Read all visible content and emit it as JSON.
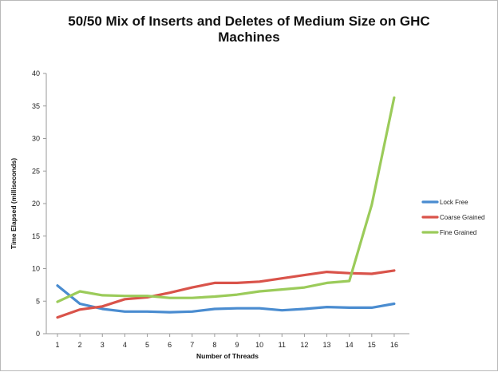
{
  "chart_data": {
    "type": "line",
    "title_lines": [
      "50/50 Mix of Inserts and Deletes of  Medium Size on GHC",
      "Machines"
    ],
    "xlabel": "Number of Threads",
    "ylabel": "Time Elapsed (milliseconds)",
    "x": [
      1,
      2,
      3,
      4,
      5,
      6,
      7,
      8,
      9,
      10,
      11,
      12,
      13,
      14,
      15,
      16
    ],
    "x_tick_labels": [
      "1",
      "2",
      "3",
      "4",
      "5",
      "6",
      "7",
      "8",
      "9",
      "10",
      "11",
      "12",
      "13",
      "14",
      "15",
      "16"
    ],
    "ylim": [
      0,
      40
    ],
    "y_ticks": [
      0,
      5,
      10,
      15,
      20,
      25,
      30,
      35,
      40
    ],
    "y_tick_labels": [
      "0",
      "5",
      "10",
      "15",
      "20",
      "25",
      "30",
      "35",
      "40"
    ],
    "grid": false,
    "legend_position": "right",
    "series": [
      {
        "name": "Lock Free",
        "color": "#4a8cd0",
        "values": [
          7.4,
          4.6,
          3.8,
          3.4,
          3.4,
          3.3,
          3.4,
          3.8,
          3.9,
          3.9,
          3.6,
          3.8,
          4.1,
          4.0,
          4.0,
          4.6
        ]
      },
      {
        "name": "Coarse Grained",
        "color": "#d9534a",
        "values": [
          2.5,
          3.7,
          4.2,
          5.3,
          5.6,
          6.3,
          7.1,
          7.8,
          7.8,
          8.0,
          8.5,
          9.0,
          9.5,
          9.3,
          9.2,
          9.7
        ]
      },
      {
        "name": "Fine Grained",
        "color": "#9bcb5a",
        "values": [
          4.9,
          6.5,
          5.9,
          5.8,
          5.8,
          5.5,
          5.5,
          5.7,
          6.0,
          6.5,
          6.8,
          7.1,
          7.8,
          8.1,
          19.8,
          36.3
        ]
      }
    ]
  }
}
